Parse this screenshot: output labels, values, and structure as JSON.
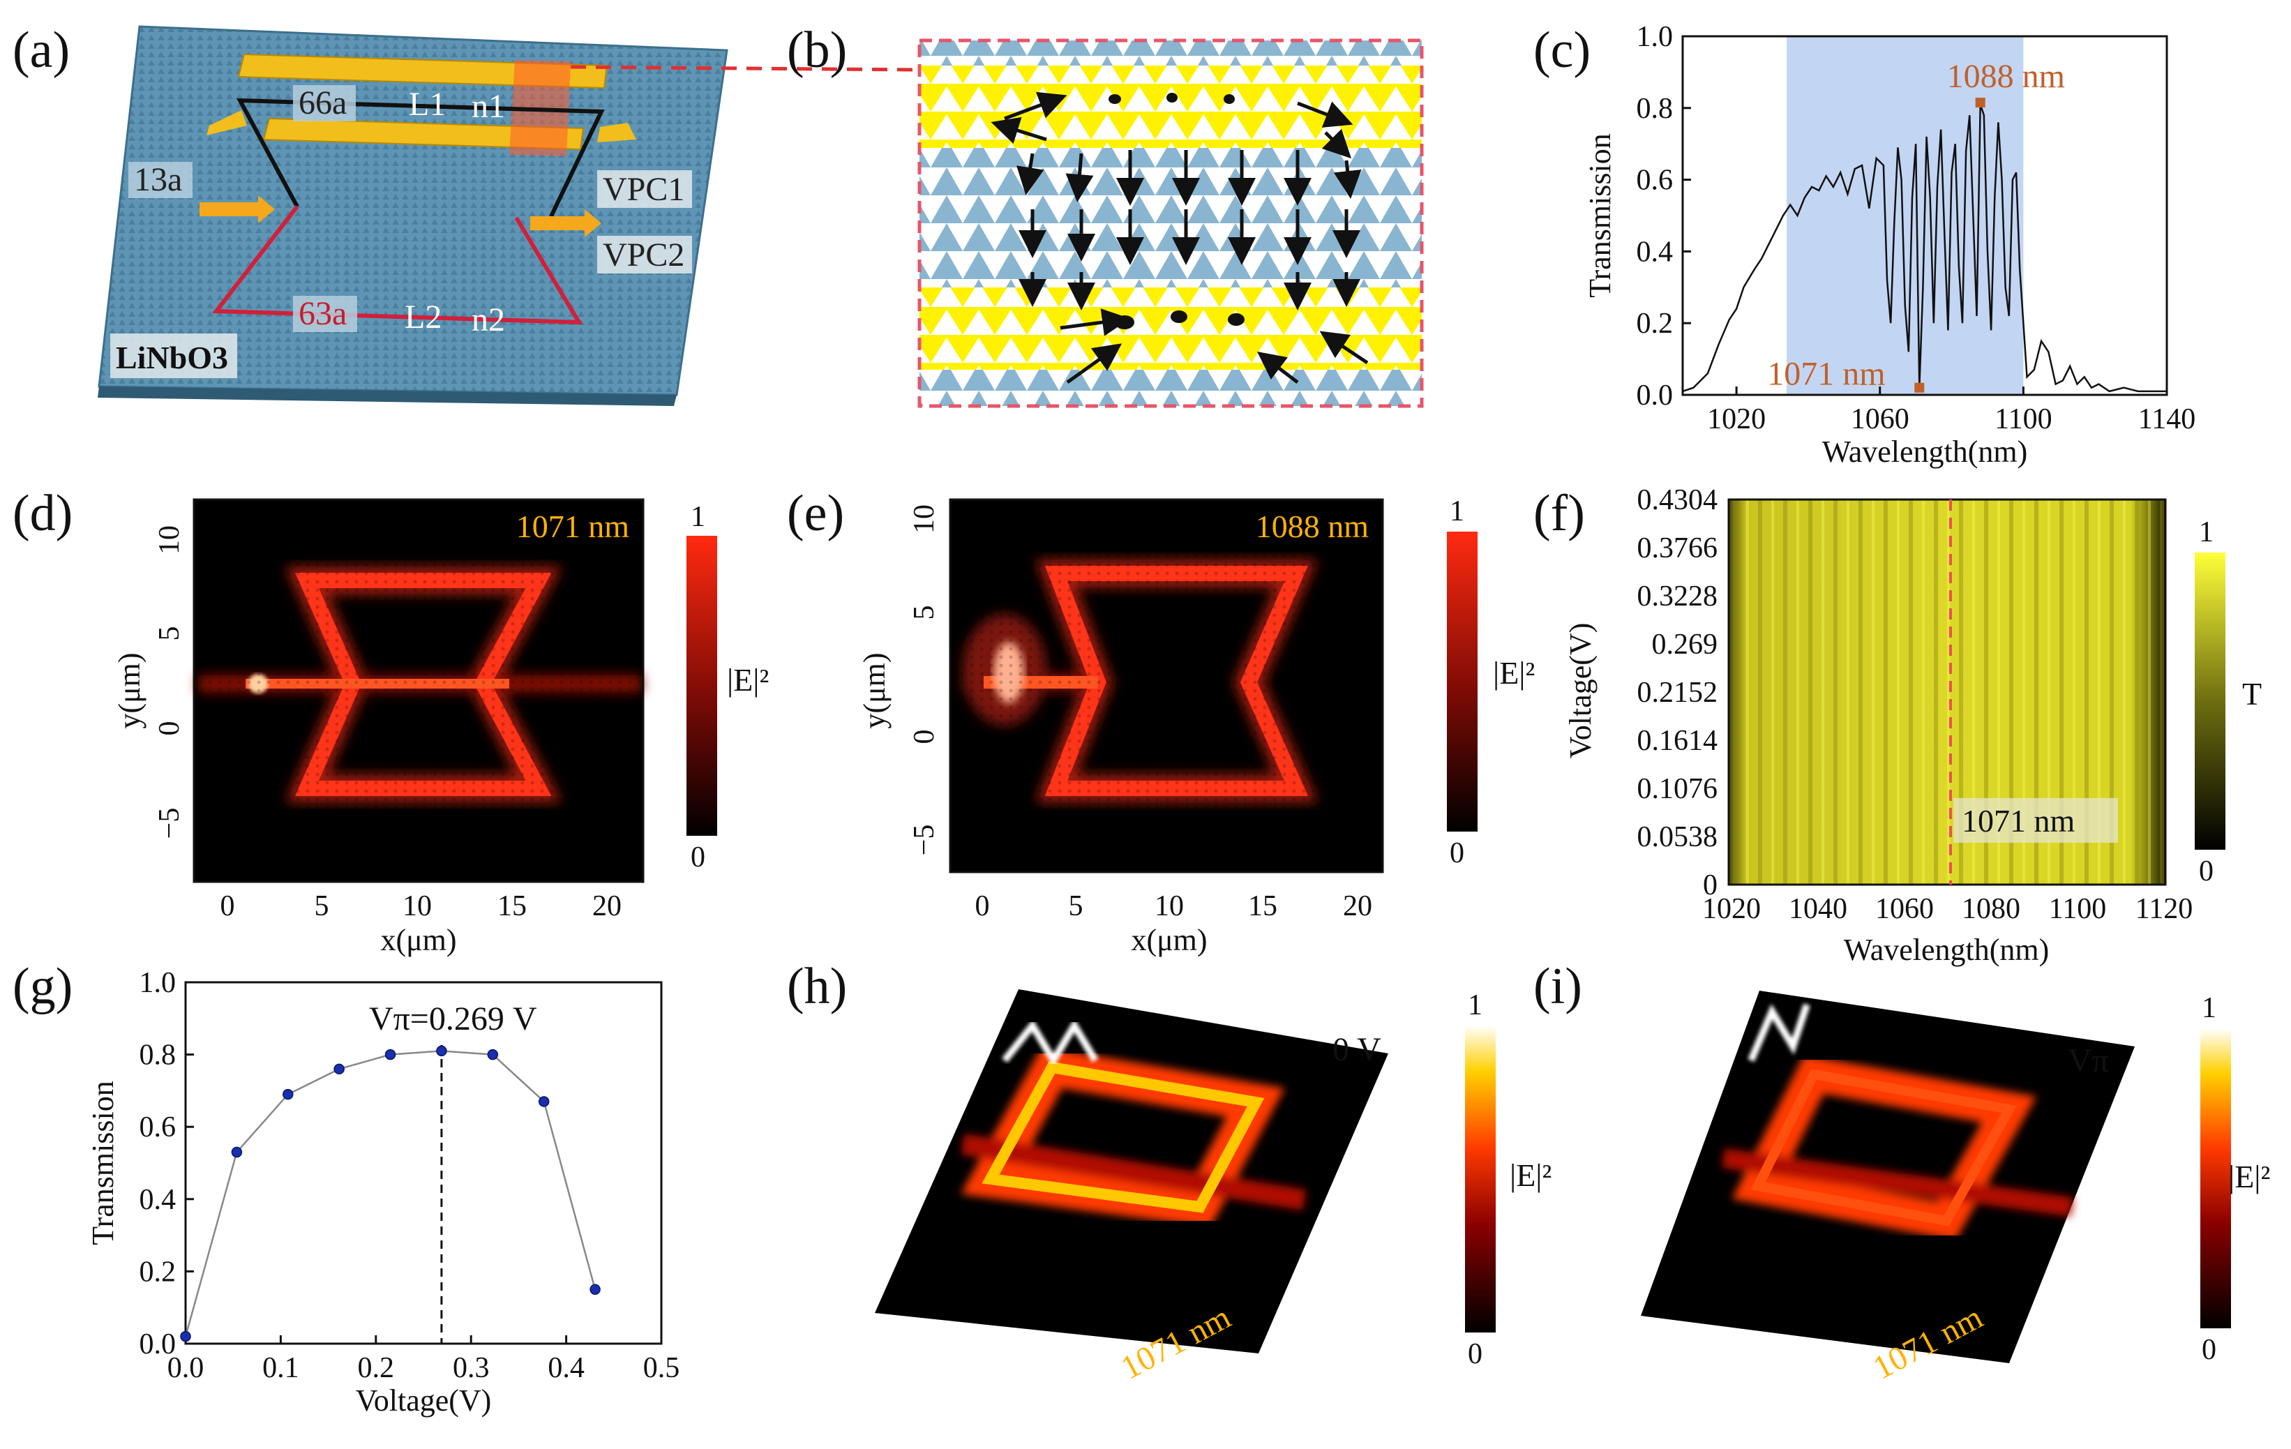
{
  "figure": {
    "panel_labels": [
      "(a)",
      "(b)",
      "(c)",
      "(d)",
      "(e)",
      "(f)",
      "(g)",
      "(h)",
      "(i)"
    ],
    "colors": {
      "lattice_blue": "#5f95b4",
      "gold": "#f2be1c",
      "region_yellow": "#fff200",
      "highlight": "#c2d6f3",
      "marker_orange": "#c0602a",
      "label_gold": "#ffb300",
      "hot_red": "#ff2a10"
    }
  },
  "panel_a": {
    "labels": {
      "top_len": "66a",
      "l1": "L1",
      "n1": "n1",
      "left_len": "13a",
      "vpc1": "VPC1",
      "vpc2": "VPC2",
      "bottom_len": "63a",
      "l2": "L2",
      "n2": "n2",
      "material": "LiNbO3"
    }
  },
  "panel_d": {
    "wavelength_label": "1071 nm",
    "xlabel": "x(μm)",
    "ylabel": "y(μm)",
    "x_ticks": [
      "0",
      "5",
      "10",
      "15",
      "20"
    ],
    "y_ticks": [
      "10",
      "5",
      "0",
      "−5"
    ],
    "colorbar": {
      "max": "1",
      "min": "0",
      "label": "|E|²"
    }
  },
  "panel_e": {
    "wavelength_label": "1088 nm",
    "xlabel": "x(μm)",
    "ylabel": "y(μm)",
    "x_ticks": [
      "0",
      "5",
      "10",
      "15",
      "20"
    ],
    "y_ticks": [
      "10",
      "5",
      "0",
      "−5"
    ],
    "colorbar": {
      "max": "1",
      "min": "0",
      "label": "|E|²"
    }
  },
  "panel_f": {
    "xlabel": "Wavelength(nm)",
    "ylabel": "Voltage(V)",
    "x_ticks": [
      "1020",
      "1040",
      "1060",
      "1080",
      "1100",
      "1120"
    ],
    "y_ticks": [
      "0.4304",
      "0.3766",
      "0.3228",
      "0.269",
      "0.2152",
      "0.1614",
      "0.1076",
      "0.0538",
      "0"
    ],
    "marker_label": "1071 nm",
    "colorbar": {
      "max": "1",
      "min": "0",
      "label": "T"
    }
  },
  "panel_h": {
    "voltage_label": "0 V",
    "wavelength_label": "1071 nm",
    "colorbar": {
      "max": "1",
      "min": "0",
      "label": "|E|²"
    }
  },
  "panel_i": {
    "voltage_label": "Vπ",
    "wavelength_label": "1071 nm",
    "colorbar": {
      "max": "1",
      "min": "0",
      "label": "|E|²"
    }
  },
  "chart_data": [
    {
      "panel": "c",
      "type": "line",
      "title": "",
      "xlabel": "Wavelength(nm)",
      "ylabel": "Transmission",
      "xlim": [
        1005,
        1140
      ],
      "ylim": [
        0,
        1.0
      ],
      "x_ticks": [
        1020,
        1060,
        1100,
        1140
      ],
      "y_ticks": [
        0.0,
        0.2,
        0.4,
        0.6,
        0.8,
        1.0
      ],
      "highlight_band": [
        1034,
        1100
      ],
      "x": [
        1005,
        1008,
        1012,
        1015,
        1018,
        1020,
        1022,
        1025,
        1027,
        1029,
        1031,
        1033,
        1035,
        1037,
        1039,
        1041,
        1043,
        1045,
        1047,
        1049,
        1051,
        1053,
        1055,
        1057,
        1059,
        1061,
        1062,
        1063,
        1064,
        1065,
        1066,
        1067,
        1068,
        1069,
        1070,
        1071,
        1072,
        1073,
        1074,
        1075,
        1076,
        1077,
        1078,
        1079,
        1080,
        1081,
        1082,
        1083,
        1084,
        1085,
        1086,
        1087,
        1088,
        1089,
        1090,
        1091,
        1092,
        1093,
        1094,
        1095,
        1096,
        1097,
        1098,
        1099,
        1100,
        1101,
        1103,
        1105,
        1107,
        1109,
        1111,
        1113,
        1115,
        1117,
        1119,
        1121,
        1124,
        1128,
        1132,
        1136,
        1140
      ],
      "series": [
        {
          "name": "Transmission",
          "values": [
            0.01,
            0.02,
            0.06,
            0.14,
            0.21,
            0.24,
            0.3,
            0.35,
            0.38,
            0.42,
            0.46,
            0.5,
            0.53,
            0.5,
            0.55,
            0.58,
            0.57,
            0.61,
            0.58,
            0.62,
            0.56,
            0.63,
            0.64,
            0.52,
            0.66,
            0.64,
            0.32,
            0.2,
            0.48,
            0.69,
            0.6,
            0.25,
            0.12,
            0.55,
            0.7,
            0.02,
            0.3,
            0.72,
            0.55,
            0.2,
            0.58,
            0.74,
            0.45,
            0.18,
            0.62,
            0.7,
            0.36,
            0.2,
            0.68,
            0.78,
            0.5,
            0.22,
            0.81,
            0.78,
            0.4,
            0.18,
            0.55,
            0.76,
            0.6,
            0.3,
            0.22,
            0.6,
            0.62,
            0.35,
            0.2,
            0.05,
            0.07,
            0.15,
            0.12,
            0.03,
            0.04,
            0.08,
            0.03,
            0.05,
            0.02,
            0.03,
            0.01,
            0.02,
            0.01,
            0.01,
            0.01
          ]
        }
      ],
      "annotations": [
        {
          "text": "1088 nm",
          "x": 1088,
          "y": 0.815
        },
        {
          "text": "1071 nm",
          "x": 1071,
          "y": 0.02
        }
      ]
    },
    {
      "panel": "g",
      "type": "line",
      "title": "",
      "xlabel": "Voltage(V)",
      "ylabel": "Transmission",
      "xlim": [
        0,
        0.5
      ],
      "ylim": [
        0,
        1.0
      ],
      "x_ticks": [
        0.0,
        0.1,
        0.2,
        0.3,
        0.4,
        0.5
      ],
      "y_ticks": [
        0.0,
        0.2,
        0.4,
        0.6,
        0.8,
        1.0
      ],
      "x": [
        0,
        0.0538,
        0.1076,
        0.1614,
        0.2152,
        0.269,
        0.3228,
        0.3766,
        0.4304
      ],
      "series": [
        {
          "name": "Transmission",
          "values": [
            0.02,
            0.53,
            0.69,
            0.76,
            0.8,
            0.81,
            0.8,
            0.67,
            0.15
          ]
        }
      ],
      "vline_x": 0.269,
      "annotation": "Vπ=0.269 V"
    }
  ]
}
